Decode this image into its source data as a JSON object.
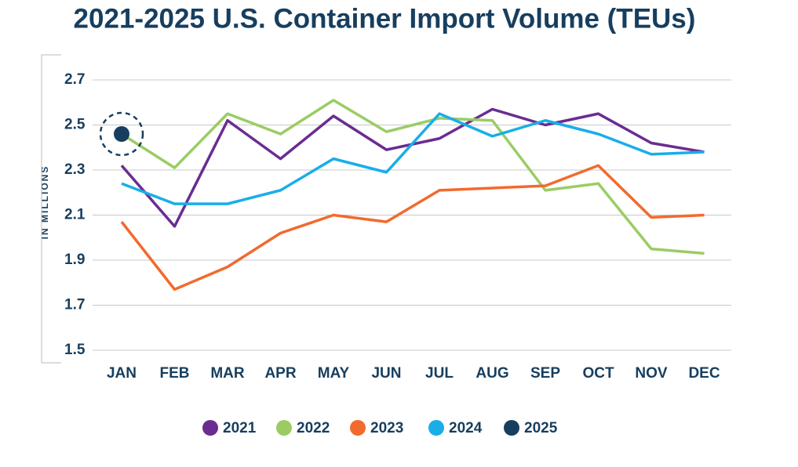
{
  "chart_data": {
    "type": "line",
    "title": "2021-2025 U.S. Container Import Volume (TEUs)",
    "y_label": "IN MILLIONS",
    "categories": [
      "JAN",
      "FEB",
      "MAR",
      "APR",
      "MAY",
      "JUN",
      "JUL",
      "AUG",
      "SEP",
      "OCT",
      "NOV",
      "DEC"
    ],
    "series": [
      {
        "name": "2021",
        "color": "#6a2c91",
        "values": [
          2.32,
          2.05,
          2.52,
          2.35,
          2.54,
          2.39,
          2.44,
          2.57,
          2.5,
          2.55,
          2.42,
          2.38
        ]
      },
      {
        "name": "2022",
        "color": "#9bcc64",
        "values": [
          2.46,
          2.31,
          2.55,
          2.46,
          2.61,
          2.47,
          2.53,
          2.52,
          2.21,
          2.24,
          1.95,
          1.93
        ]
      },
      {
        "name": "2023",
        "color": "#f26a2e",
        "values": [
          2.07,
          1.77,
          1.87,
          2.02,
          2.1,
          2.07,
          2.21,
          2.22,
          2.23,
          2.32,
          2.09,
          2.1
        ]
      },
      {
        "name": "2024",
        "color": "#19aee8",
        "values": [
          2.24,
          2.15,
          2.15,
          2.21,
          2.35,
          2.29,
          2.55,
          2.45,
          2.52,
          2.46,
          2.37,
          2.38
        ]
      },
      {
        "name": "2025",
        "color": "#173e5e",
        "values": [
          2.46,
          null,
          null,
          null,
          null,
          null,
          null,
          null,
          null,
          null,
          null,
          null
        ]
      }
    ],
    "ylim": [
      1.5,
      2.7
    ],
    "yticks": [
      1.5,
      1.7,
      1.9,
      2.1,
      2.3,
      2.5,
      2.7
    ],
    "grid": true,
    "legend": "bottom"
  }
}
